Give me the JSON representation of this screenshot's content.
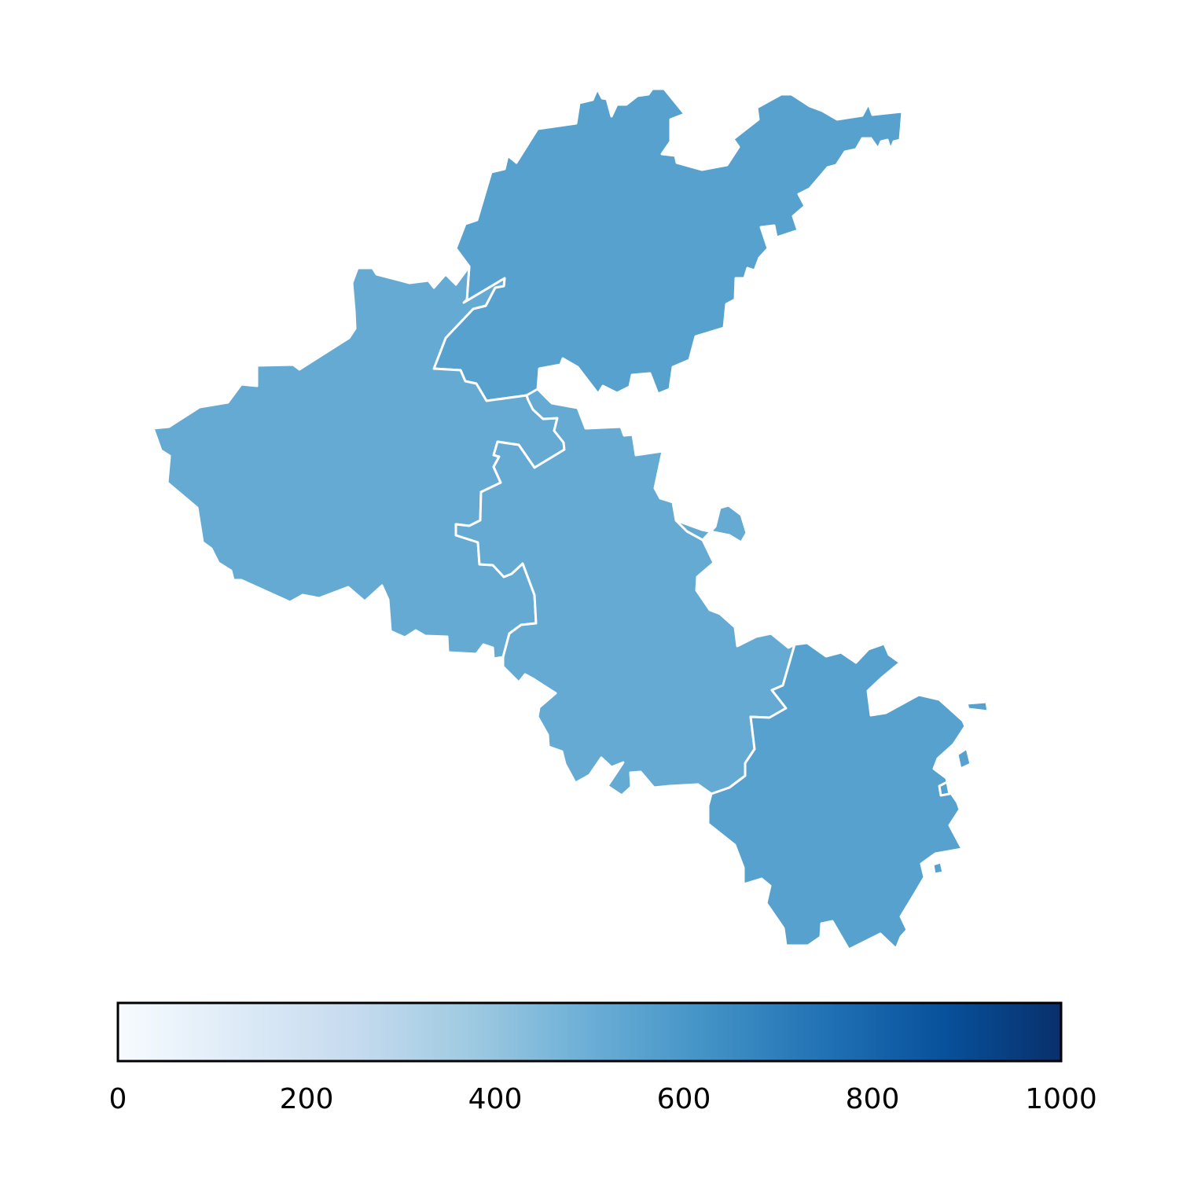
{
  "map": {
    "regions": [
      {
        "id": "northeast",
        "value": 560
      },
      {
        "id": "west",
        "value": 520
      },
      {
        "id": "center",
        "value": 520
      },
      {
        "id": "southeast",
        "value": 560
      }
    ]
  },
  "colorbar": {
    "colormap": "Blues",
    "min": 0,
    "max": 1000,
    "stops": [
      "#f7fbff",
      "#deebf7",
      "#c6dbef",
      "#9ecae1",
      "#6baed6",
      "#4292c6",
      "#2171b5",
      "#08519c",
      "#08306b"
    ],
    "ticks": [
      {
        "value": 0,
        "label": "0"
      },
      {
        "value": 200,
        "label": "200"
      },
      {
        "value": 400,
        "label": "400"
      },
      {
        "value": 600,
        "label": "600"
      },
      {
        "value": 800,
        "label": "800"
      },
      {
        "value": 1000,
        "label": "1000"
      }
    ]
  }
}
